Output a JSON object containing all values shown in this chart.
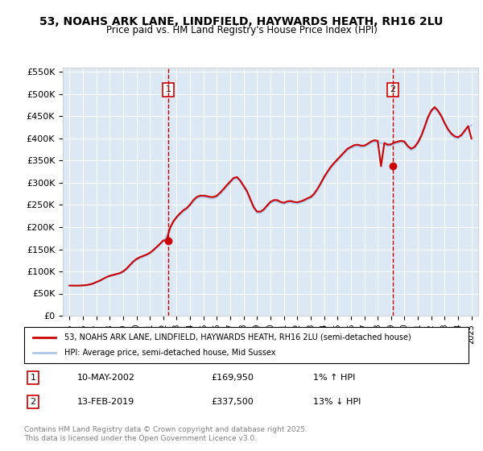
{
  "title": "53, NOAHS ARK LANE, LINDFIELD, HAYWARDS HEATH, RH16 2LU",
  "subtitle": "Price paid vs. HM Land Registry's House Price Index (HPI)",
  "ylabel_ticks": [
    "£0",
    "£50K",
    "£100K",
    "£150K",
    "£200K",
    "£250K",
    "£300K",
    "£350K",
    "£400K",
    "£450K",
    "£500K",
    "£550K"
  ],
  "ylim": [
    0,
    560000
  ],
  "xlim_start": 1995.0,
  "xlim_end": 2025.5,
  "bg_color": "#dce9f5",
  "plot_bg": "#dce9f5",
  "grid_color": "#ffffff",
  "red_color": "#cc0000",
  "blue_color": "#aac8e8",
  "sale1_year": 2002.36,
  "sale1_price": 169950,
  "sale2_year": 2019.12,
  "sale2_price": 337500,
  "legend_line1": "53, NOAHS ARK LANE, LINDFIELD, HAYWARDS HEATH, RH16 2LU (semi-detached house)",
  "legend_line2": "HPI: Average price, semi-detached house, Mid Sussex",
  "annotation1_date": "10-MAY-2002",
  "annotation1_price": "£169,950",
  "annotation1_hpi": "1% ↑ HPI",
  "annotation2_date": "13-FEB-2019",
  "annotation2_price": "£337,500",
  "annotation2_hpi": "13% ↓ HPI",
  "footer": "Contains HM Land Registry data © Crown copyright and database right 2025.\nThis data is licensed under the Open Government Licence v3.0.",
  "hpi_data": {
    "years": [
      1995.0,
      1995.25,
      1995.5,
      1995.75,
      1996.0,
      1996.25,
      1996.5,
      1996.75,
      1997.0,
      1997.25,
      1997.5,
      1997.75,
      1998.0,
      1998.25,
      1998.5,
      1998.75,
      1999.0,
      1999.25,
      1999.5,
      1999.75,
      2000.0,
      2000.25,
      2000.5,
      2000.75,
      2001.0,
      2001.25,
      2001.5,
      2001.75,
      2002.0,
      2002.25,
      2002.5,
      2002.75,
      2003.0,
      2003.25,
      2003.5,
      2003.75,
      2004.0,
      2004.25,
      2004.5,
      2004.75,
      2005.0,
      2005.25,
      2005.5,
      2005.75,
      2006.0,
      2006.25,
      2006.5,
      2006.75,
      2007.0,
      2007.25,
      2007.5,
      2007.75,
      2008.0,
      2008.25,
      2008.5,
      2008.75,
      2009.0,
      2009.25,
      2009.5,
      2009.75,
      2010.0,
      2010.25,
      2010.5,
      2010.75,
      2011.0,
      2011.25,
      2011.5,
      2011.75,
      2012.0,
      2012.25,
      2012.5,
      2012.75,
      2013.0,
      2013.25,
      2013.5,
      2013.75,
      2014.0,
      2014.25,
      2014.5,
      2014.75,
      2015.0,
      2015.25,
      2015.5,
      2015.75,
      2016.0,
      2016.25,
      2016.5,
      2016.75,
      2017.0,
      2017.25,
      2017.5,
      2017.75,
      2018.0,
      2018.25,
      2018.5,
      2018.75,
      2019.0,
      2019.25,
      2019.5,
      2019.75,
      2020.0,
      2020.25,
      2020.5,
      2020.75,
      2021.0,
      2021.25,
      2021.5,
      2021.75,
      2022.0,
      2022.25,
      2022.5,
      2022.75,
      2023.0,
      2023.25,
      2023.5,
      2023.75,
      2024.0,
      2024.25,
      2024.5,
      2024.75,
      2025.0
    ],
    "values": [
      68000,
      67500,
      67000,
      67500,
      68000,
      68500,
      70000,
      72000,
      75000,
      78000,
      82000,
      86000,
      89000,
      91000,
      93000,
      95000,
      98000,
      104000,
      112000,
      120000,
      126000,
      130000,
      133000,
      136000,
      140000,
      146000,
      153000,
      160000,
      168000,
      180000,
      196000,
      210000,
      220000,
      228000,
      235000,
      240000,
      248000,
      258000,
      265000,
      268000,
      268000,
      267000,
      265000,
      265000,
      268000,
      275000,
      283000,
      292000,
      300000,
      308000,
      310000,
      302000,
      290000,
      278000,
      260000,
      242000,
      232000,
      232000,
      237000,
      246000,
      254000,
      258000,
      258000,
      254000,
      252000,
      255000,
      256000,
      254000,
      253000,
      255000,
      258000,
      262000,
      265000,
      272000,
      283000,
      296000,
      310000,
      322000,
      333000,
      342000,
      350000,
      358000,
      366000,
      374000,
      378000,
      382000,
      383000,
      381000,
      381000,
      385000,
      390000,
      393000,
      392000,
      390000,
      387000,
      383000,
      384000,
      388000,
      390000,
      392000,
      390000,
      380000,
      374000,
      378000,
      388000,
      403000,
      423000,
      445000,
      460000,
      468000,
      460000,
      448000,
      432000,
      418000,
      408000,
      402000,
      400000,
      405000,
      415000,
      425000,
      430000
    ]
  },
  "red_data": {
    "years": [
      1995.0,
      1995.25,
      1995.5,
      1995.75,
      1996.0,
      1996.25,
      1996.5,
      1996.75,
      1997.0,
      1997.25,
      1997.5,
      1997.75,
      1998.0,
      1998.25,
      1998.5,
      1998.75,
      1999.0,
      1999.25,
      1999.5,
      1999.75,
      2000.0,
      2000.25,
      2000.5,
      2000.75,
      2001.0,
      2001.25,
      2001.5,
      2001.75,
      2002.0,
      2002.25,
      2002.5,
      2002.75,
      2003.0,
      2003.25,
      2003.5,
      2003.75,
      2004.0,
      2004.25,
      2004.5,
      2004.75,
      2005.0,
      2005.25,
      2005.5,
      2005.75,
      2006.0,
      2006.25,
      2006.5,
      2006.75,
      2007.0,
      2007.25,
      2007.5,
      2007.75,
      2008.0,
      2008.25,
      2008.5,
      2008.75,
      2009.0,
      2009.25,
      2009.5,
      2009.75,
      2010.0,
      2010.25,
      2010.5,
      2010.75,
      2011.0,
      2011.25,
      2011.5,
      2011.75,
      2012.0,
      2012.25,
      2012.5,
      2012.75,
      2013.0,
      2013.25,
      2013.5,
      2013.75,
      2014.0,
      2014.25,
      2014.5,
      2014.75,
      2015.0,
      2015.25,
      2015.5,
      2015.75,
      2016.0,
      2016.25,
      2016.5,
      2016.75,
      2017.0,
      2017.25,
      2017.5,
      2017.75,
      2018.0,
      2018.25,
      2018.5,
      2018.75,
      2019.0,
      2019.25,
      2019.5,
      2019.75,
      2020.0,
      2020.25,
      2020.5,
      2020.75,
      2021.0,
      2021.25,
      2021.5,
      2021.75,
      2022.0,
      2022.25,
      2022.5,
      2022.75,
      2023.0,
      2023.25,
      2023.5,
      2023.75,
      2024.0,
      2024.25,
      2024.5,
      2024.75,
      2025.0
    ],
    "values": [
      68000,
      68000,
      68000,
      68000,
      68500,
      69000,
      70500,
      72500,
      76000,
      79000,
      83000,
      87000,
      90000,
      92000,
      94000,
      96000,
      100000,
      106000,
      114000,
      122000,
      128000,
      132000,
      135000,
      138000,
      142000,
      148000,
      155000,
      162000,
      170000,
      169950,
      198000,
      213000,
      223000,
      231000,
      238000,
      243000,
      251000,
      261000,
      268000,
      271000,
      271000,
      270000,
      268000,
      268000,
      271000,
      278000,
      286000,
      295000,
      303000,
      311000,
      313000,
      305000,
      293000,
      281000,
      263000,
      245000,
      235000,
      235000,
      240000,
      249000,
      257000,
      261000,
      261000,
      257000,
      255000,
      258000,
      259000,
      257000,
      256000,
      258000,
      261000,
      265000,
      268000,
      275000,
      286000,
      299000,
      313000,
      325000,
      336000,
      345000,
      353000,
      361000,
      369000,
      377000,
      381000,
      385000,
      386000,
      384000,
      384000,
      388000,
      393000,
      396000,
      395000,
      337500,
      390000,
      386000,
      387000,
      391000,
      393000,
      395000,
      393000,
      383000,
      377000,
      381000,
      391000,
      406000,
      426000,
      448000,
      463000,
      471000,
      463000,
      451000,
      435000,
      421000,
      411000,
      405000,
      403000,
      408000,
      418000,
      428000,
      400000
    ]
  }
}
